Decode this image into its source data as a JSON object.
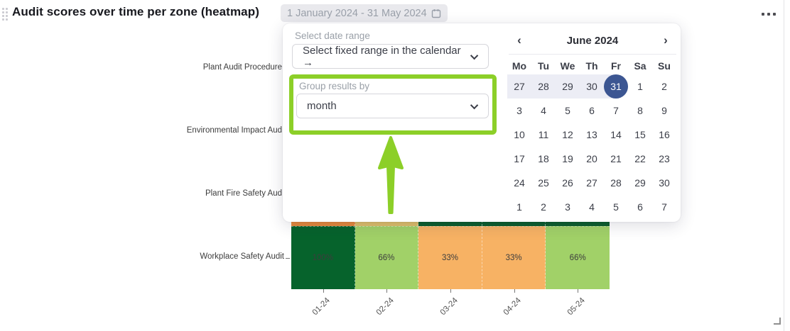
{
  "header": {
    "title": "Audit scores over time per zone (heatmap)",
    "date_range": "1 January 2024 - 31 May 2024"
  },
  "popup": {
    "date_range_label": "Select date range",
    "date_range_value": "Select fixed range in the calendar →",
    "group_by_label": "Group results by",
    "group_by_value": "month"
  },
  "calendar": {
    "title": "June 2024",
    "prev": "‹",
    "next": "›",
    "weekdays": [
      "Mo",
      "Tu",
      "We",
      "Th",
      "Fr",
      "Sa",
      "Su"
    ],
    "weeks": [
      [
        "27",
        "28",
        "29",
        "30",
        "31",
        "1",
        "2"
      ],
      [
        "3",
        "4",
        "5",
        "6",
        "7",
        "8",
        "9"
      ],
      [
        "10",
        "11",
        "12",
        "13",
        "14",
        "15",
        "16"
      ],
      [
        "17",
        "18",
        "19",
        "20",
        "21",
        "22",
        "23"
      ],
      [
        "24",
        "25",
        "26",
        "27",
        "28",
        "29",
        "30"
      ],
      [
        "1",
        "2",
        "3",
        "4",
        "5",
        "6",
        "7"
      ]
    ],
    "range_week": 0,
    "range_start_index": 0,
    "range_end_index": 4,
    "selected_week": 0,
    "selected_index": 4,
    "selected_day": "31"
  },
  "chart_data": {
    "type": "heatmap",
    "x_labels": [
      "01-24",
      "02-24",
      "03-24",
      "04-24",
      "05-24"
    ],
    "rows": [
      {
        "label": "Plant Audit Procedure",
        "cells": [
          {
            "color": null,
            "label": ""
          },
          {
            "color": null,
            "label": ""
          },
          {
            "color": null,
            "label": ""
          },
          {
            "color": null,
            "label": ""
          },
          {
            "color": null,
            "label": ""
          }
        ]
      },
      {
        "label": "Environmental Impact Aud",
        "cells": [
          {
            "color": null,
            "label": ""
          },
          {
            "color": null,
            "label": ""
          },
          {
            "color": null,
            "label": ""
          },
          {
            "color": null,
            "label": ""
          },
          {
            "color": null,
            "label": ""
          }
        ]
      },
      {
        "label": "Plant Fire Safety Aud",
        "cells": [
          {
            "color": "#e5893c",
            "label": ""
          },
          {
            "color": "#ddbe6a",
            "label": ""
          },
          {
            "color": "#0b5e2c",
            "label": ""
          },
          {
            "color": "#0b5e2c",
            "label": ""
          },
          {
            "color": "#0b5e2c",
            "label": ""
          }
        ]
      },
      {
        "label": "Workplace Safety Audit",
        "cells": [
          {
            "color": "#06632c",
            "label": "100%"
          },
          {
            "color": "#a1d168",
            "label": "66%"
          },
          {
            "color": "#f7b264",
            "label": "33%"
          },
          {
            "color": "#f7b264",
            "label": "33%"
          },
          {
            "color": "#a1d168",
            "label": "66%"
          }
        ]
      }
    ],
    "visible_values_note": "Workplace Safety Audit: 100, 66, 33, 33, 66 (percent)"
  },
  "colors": {
    "annotation_green": "#8ccf28",
    "selected_navy": "#3c5692",
    "range_highlight": "#ecedf5",
    "heat_dark_green": "#06632c",
    "heat_light_green": "#a1d168",
    "heat_orange": "#f7b264"
  }
}
